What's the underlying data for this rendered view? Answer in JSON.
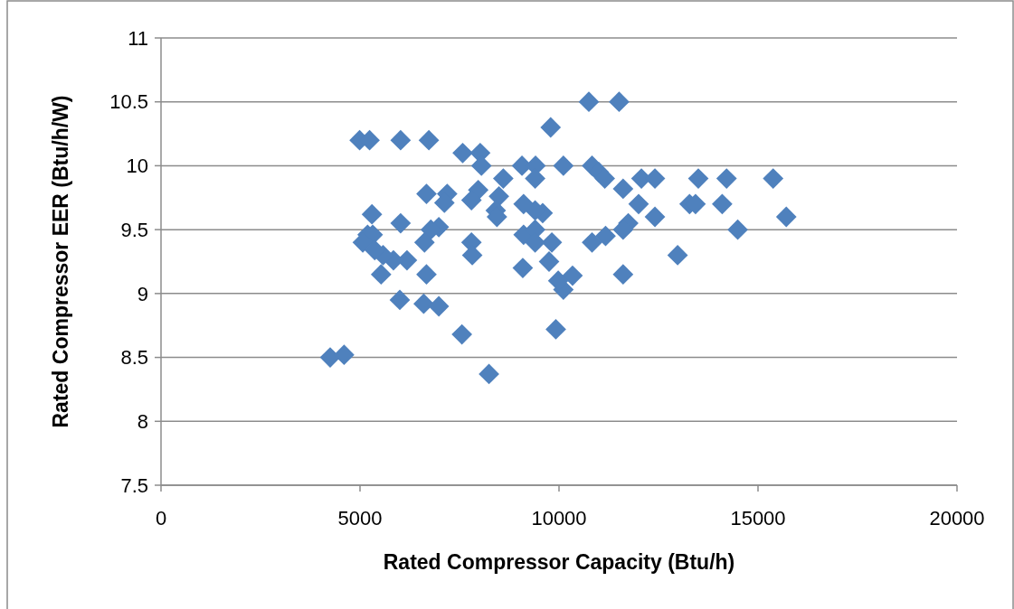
{
  "chart_data": {
    "type": "scatter",
    "xlabel": "Rated Compressor Capacity (Btu/h)",
    "ylabel": "Rated Compressor EER (Btu/h/W)",
    "xlim": [
      0,
      20000
    ],
    "xticks": [
      0,
      5000,
      10000,
      15000,
      20000
    ],
    "ylim": [
      7.5,
      11
    ],
    "yticks": [
      7.5,
      8,
      8.5,
      9,
      9.5,
      10,
      10.5,
      11
    ],
    "grid": "y",
    "marker": "diamond",
    "series": [
      {
        "color": "#4f81bd",
        "x": [
          4250,
          4600,
          4990,
          5240,
          6020,
          6730,
          10750,
          11510,
          9790,
          7580,
          8020,
          8050,
          8600,
          9070,
          9410,
          9400,
          10110,
          10830,
          11000,
          11150,
          11610,
          12070,
          12410,
          13280,
          13430,
          13500,
          14210,
          14100,
          14490,
          15380,
          15710,
          12980,
          12000,
          12410,
          11740,
          11610,
          11610,
          11170,
          10830,
          10340,
          10110,
          9980,
          9920,
          9750,
          9820,
          9590,
          9400,
          9110,
          9110,
          9400,
          9400,
          9090,
          8490,
          8410,
          8440,
          8240,
          7970,
          7800,
          7800,
          7820,
          7560,
          7190,
          7120,
          6980,
          6780,
          6670,
          6620,
          6670,
          6600,
          6980,
          6020,
          6000,
          6180,
          5840,
          5580,
          5530,
          5300,
          5190,
          5320,
          5070,
          5370
        ],
        "values": [
          8.5,
          8.52,
          10.2,
          10.2,
          10.2,
          10.2,
          10.5,
          10.5,
          10.3,
          10.1,
          10.1,
          10.0,
          9.9,
          10.0,
          10.0,
          9.9,
          10.0,
          10.0,
          9.95,
          9.9,
          9.82,
          9.9,
          9.9,
          9.7,
          9.7,
          9.9,
          9.9,
          9.7,
          9.5,
          9.9,
          9.6,
          9.3,
          9.7,
          9.6,
          9.55,
          9.5,
          9.15,
          9.45,
          9.4,
          9.14,
          9.03,
          9.1,
          8.72,
          9.25,
          9.4,
          9.63,
          9.65,
          9.7,
          9.46,
          9.5,
          9.4,
          9.2,
          9.76,
          9.65,
          9.6,
          8.37,
          9.81,
          9.73,
          9.4,
          9.3,
          8.68,
          9.78,
          9.71,
          9.52,
          9.5,
          9.78,
          9.4,
          9.15,
          8.92,
          8.9,
          9.55,
          8.95,
          9.26,
          9.26,
          9.3,
          9.15,
          9.62,
          9.46,
          9.46,
          9.4,
          9.34
        ]
      }
    ]
  }
}
